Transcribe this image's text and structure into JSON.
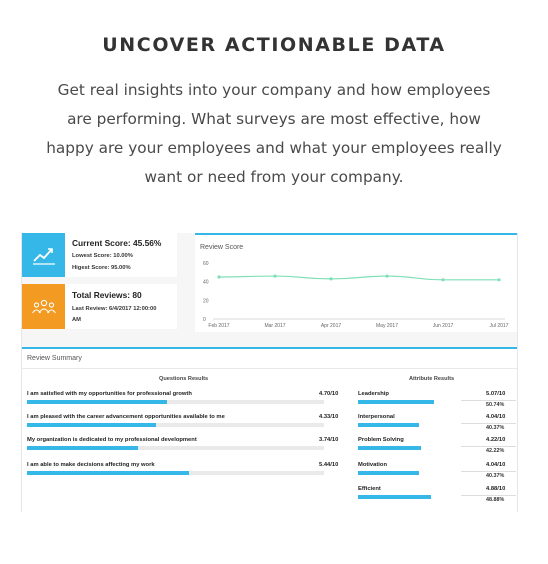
{
  "header": {
    "headline": "UNCOVER ACTIONABLE DATA",
    "lead_lines": [
      "Get real insights into your company and how employees",
      "are performing. What surveys are most effective, how",
      "happy are your employees and what your employees really",
      "want or need from your company."
    ]
  },
  "colors": {
    "accent_blue": "#35b8e8",
    "score_card": "#35b8e8",
    "reviews_card": "#f39a23",
    "chart_line": "#7fe0b8"
  },
  "score_card": {
    "icon": "trend-chart-icon",
    "title": "Current Score: 45.56%",
    "lowest": "Lowest Score: 10.00%",
    "highest": "Higest Score: 95.00%"
  },
  "reviews_card": {
    "icon": "people-group-icon",
    "title": "Total Reviews: 80",
    "last_review": "Last Review: 6/4/2017 12:00:00",
    "last_review_suffix": "AM"
  },
  "chart_data": {
    "type": "line",
    "title": "Review Score",
    "x": [
      "Feb 2017",
      "Mar 2017",
      "Apr 2017",
      "May 2017",
      "Jun 2017",
      "Jul 2017"
    ],
    "series": [
      {
        "values": [
          45,
          46,
          43,
          46,
          42,
          42
        ]
      }
    ],
    "yticks": [
      "60",
      "40",
      "20",
      "0"
    ],
    "ylim": [
      0,
      60
    ]
  },
  "summary": {
    "title": "Review Summary",
    "questions_header": "Questions Results",
    "attributes_header": "Attribute Results",
    "questions": [
      {
        "label": "I am satisfied with my opportunities for professional growth",
        "score": "4.70/10",
        "fill": 0.47
      },
      {
        "label": "I am pleased with the career advancement opportunities available to me",
        "score": "4.33/10",
        "fill": 0.433
      },
      {
        "label": "My organization is dedicated to my professional development",
        "score": "3.74/10",
        "fill": 0.374
      },
      {
        "label": "I am able to make decisions affecting my work",
        "score": "5.44/10",
        "fill": 0.544
      }
    ],
    "attributes": [
      {
        "label": "Leadership",
        "score": "5.07/10",
        "pct": "50.74%",
        "fill": 0.5074
      },
      {
        "label": "Interpersonal",
        "score": "4.04/10",
        "pct": "40.37%",
        "fill": 0.4037
      },
      {
        "label": "Problem Solving",
        "score": "4.22/10",
        "pct": "42.22%",
        "fill": 0.4222
      },
      {
        "label": "Motivation",
        "score": "4.04/10",
        "pct": "40.37%",
        "fill": 0.4037
      },
      {
        "label": "Efficient",
        "score": "4.88/10",
        "pct": "48.88%",
        "fill": 0.4888
      }
    ]
  }
}
